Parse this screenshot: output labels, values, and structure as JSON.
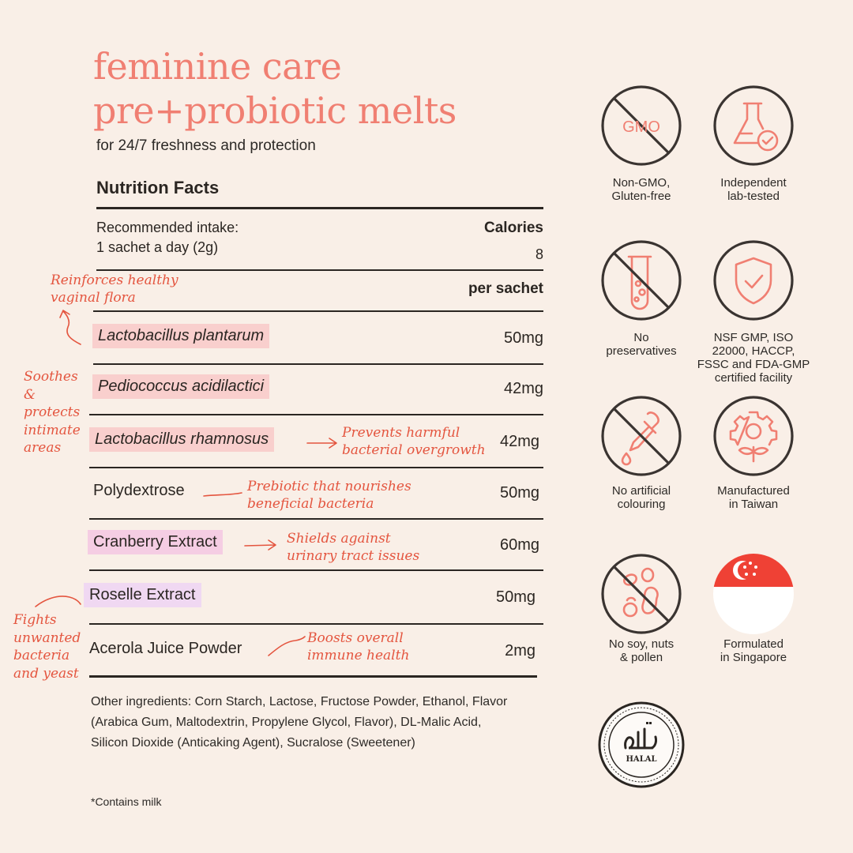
{
  "header": {
    "title_line1": "feminine care",
    "title_line2": "pre+probiotic melts",
    "subtitle": "for 24/7 freshness and protection"
  },
  "nutrition": {
    "title": "Nutrition Facts",
    "intake_label": "Recommended intake:",
    "intake_value": "1  sachet a day (2g)",
    "calories_label": "Calories",
    "calories_value": "8",
    "per_label": "per sachet",
    "ingredients": [
      {
        "name": "Lactobacillus plantarum",
        "amount": "50mg"
      },
      {
        "name": "Pediococcus acidilactici",
        "amount": "42mg"
      },
      {
        "name": "Lactobacillus rhamnosus",
        "amount": "42mg"
      },
      {
        "name": "Polydextrose",
        "amount": "50mg"
      },
      {
        "name": "Cranberry Extract",
        "amount": "60mg"
      },
      {
        "name": "Roselle Extract",
        "amount": "50mg"
      },
      {
        "name": "Acerola Juice Powder",
        "amount": "2mg"
      }
    ],
    "other_ingredients": "Other ingredients: Corn Starch, Lactose, Fructose Powder, Ethanol, Flavor (Arabica Gum, Maltodextrin, Propylene Glycol, Flavor), DL-Malic Acid, Silicon Dioxide (Anticaking Agent), Sucralose (Sweetener)",
    "contains": "*Contains milk"
  },
  "annotations": {
    "reinforces_1": "Reinforces healthy",
    "reinforces_2": "vaginal flora",
    "soothes_1": "Soothes",
    "soothes_2": "&",
    "soothes_3": "protects",
    "soothes_4": "intimate",
    "soothes_5": "areas",
    "prevents_1": "Prevents harmful",
    "prevents_2": "bacterial overgrowth",
    "prebiotic_1": "Prebiotic that nourishes",
    "prebiotic_2": "beneficial bacteria",
    "shields_1": "Shields against",
    "shields_2": "urinary tract issues",
    "fights_1": "Fights",
    "fights_2": "unwanted",
    "fights_3": "bacteria",
    "fights_4": "and yeast",
    "boosts_1": "Boosts overall",
    "boosts_2": "immune health"
  },
  "badges": {
    "gmo_text": "GMO",
    "non_gmo_1": "Non-GMO,",
    "non_gmo_2": "Gluten-free",
    "lab_1": "Independent",
    "lab_2": "lab-tested",
    "preservatives_1": "No",
    "preservatives_2": "preservatives",
    "cert_1": "NSF GMP, ISO",
    "cert_2": "22000, HACCP,",
    "cert_3": "FSSC and FDA-GMP",
    "cert_4": "certified facility",
    "colouring_1": "No artificial",
    "colouring_2": "colouring",
    "taiwan_1": "Manufactured",
    "taiwan_2": "in Taiwan",
    "allergen_1": "No soy, nuts",
    "allergen_2": "& pollen",
    "singapore_1": "Formulated",
    "singapore_2": "in Singapore",
    "halal_text": "HALAL"
  },
  "colors": {
    "accent_coral": "#f07f72",
    "annotation_red": "#e4553f",
    "icon_dark": "#3a3431",
    "background": "#f9efe7",
    "singapore_red": "#ef4135"
  }
}
